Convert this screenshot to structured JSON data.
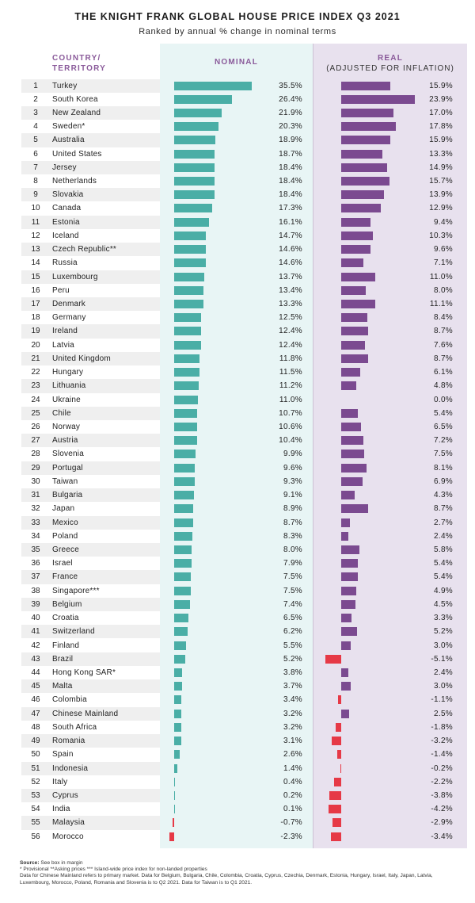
{
  "title": "THE KNIGHT FRANK GLOBAL HOUSE PRICE INDEX Q3 2021",
  "subtitle": "Ranked by annual % change in nominal terms",
  "headers": {
    "country_line1": "COUNTRY/",
    "country_line2": "TERRITORY",
    "nominal": "NOMINAL",
    "real_line1": "REAL",
    "real_line2": "(ADJUSTED FOR INFLATION)"
  },
  "colors": {
    "nominal_bar": "#4aaea6",
    "real_bar": "#7b4a90",
    "negative_bar": "#e63946",
    "nominal_panel": "#e8f5f5",
    "real_panel": "#e8e1ee",
    "header_text": "#8a5a9a"
  },
  "chart_data": {
    "type": "bar",
    "title": "THE KNIGHT FRANK GLOBAL HOUSE PRICE INDEX Q3 2021",
    "subtitle": "Ranked by annual % change in nominal terms",
    "unit": "%",
    "series": [
      {
        "name": "NOMINAL",
        "color": "#4aaea6"
      },
      {
        "name": "REAL",
        "color": "#7b4a90"
      }
    ],
    "rows": [
      {
        "rank": "1",
        "country": "Turkey",
        "nominal": 35.5,
        "real": 15.9
      },
      {
        "rank": "2",
        "country": "South Korea",
        "nominal": 26.4,
        "real": 23.9
      },
      {
        "rank": "3",
        "country": "New Zealand",
        "nominal": 21.9,
        "real": 17.0
      },
      {
        "rank": "4",
        "country": "Sweden*",
        "nominal": 20.3,
        "real": 17.8
      },
      {
        "rank": "5",
        "country": "Australia",
        "nominal": 18.9,
        "real": 15.9
      },
      {
        "rank": "6",
        "country": "United States",
        "nominal": 18.7,
        "real": 13.3
      },
      {
        "rank": "7",
        "country": "Jersey",
        "nominal": 18.4,
        "real": 14.9
      },
      {
        "rank": "8",
        "country": "Netherlands",
        "nominal": 18.4,
        "real": 15.7
      },
      {
        "rank": "9",
        "country": "Slovakia",
        "nominal": 18.4,
        "real": 13.9
      },
      {
        "rank": "10",
        "country": "Canada",
        "nominal": 17.3,
        "real": 12.9
      },
      {
        "rank": "11",
        "country": "Estonia",
        "nominal": 16.1,
        "real": 9.4
      },
      {
        "rank": "12",
        "country": "Iceland",
        "nominal": 14.7,
        "real": 10.3
      },
      {
        "rank": "13",
        "country": "Czech Republic**",
        "nominal": 14.6,
        "real": 9.6
      },
      {
        "rank": "14",
        "country": "Russia",
        "nominal": 14.6,
        "real": 7.1
      },
      {
        "rank": "15",
        "country": "Luxembourg",
        "nominal": 13.7,
        "real": 11.0
      },
      {
        "rank": "16",
        "country": "Peru",
        "nominal": 13.4,
        "real": 8.0
      },
      {
        "rank": "17",
        "country": "Denmark",
        "nominal": 13.3,
        "real": 11.1
      },
      {
        "rank": "18",
        "country": "Germany",
        "nominal": 12.5,
        "real": 8.4
      },
      {
        "rank": "19",
        "country": "Ireland",
        "nominal": 12.4,
        "real": 8.7
      },
      {
        "rank": "20",
        "country": "Latvia",
        "nominal": 12.4,
        "real": 7.6
      },
      {
        "rank": "21",
        "country": "United Kingdom",
        "nominal": 11.8,
        "real": 8.7
      },
      {
        "rank": "22",
        "country": "Hungary",
        "nominal": 11.5,
        "real": 6.1
      },
      {
        "rank": "23",
        "country": "Lithuania",
        "nominal": 11.2,
        "real": 4.8
      },
      {
        "rank": "24",
        "country": "Ukraine",
        "nominal": 11.0,
        "real": 0.0
      },
      {
        "rank": "25",
        "country": "Chile",
        "nominal": 10.7,
        "real": 5.4
      },
      {
        "rank": "26",
        "country": "Norway",
        "nominal": 10.6,
        "real": 6.5
      },
      {
        "rank": "27",
        "country": "Austria",
        "nominal": 10.4,
        "real": 7.2
      },
      {
        "rank": "28",
        "country": "Slovenia",
        "nominal": 9.9,
        "real": 7.5
      },
      {
        "rank": "29",
        "country": "Portugal",
        "nominal": 9.6,
        "real": 8.1
      },
      {
        "rank": "30",
        "country": "Taiwan",
        "nominal": 9.3,
        "real": 6.9
      },
      {
        "rank": "31",
        "country": "Bulgaria",
        "nominal": 9.1,
        "real": 4.3
      },
      {
        "rank": "32",
        "country": "Japan",
        "nominal": 8.9,
        "real": 8.7
      },
      {
        "rank": "33",
        "country": "Mexico",
        "nominal": 8.7,
        "real": 2.7
      },
      {
        "rank": "34",
        "country": "Poland",
        "nominal": 8.3,
        "real": 2.4
      },
      {
        "rank": "35",
        "country": "Greece",
        "nominal": 8.0,
        "real": 5.8
      },
      {
        "rank": "36",
        "country": "Israel",
        "nominal": 7.9,
        "real": 5.4
      },
      {
        "rank": "37",
        "country": "France",
        "nominal": 7.5,
        "real": 5.4
      },
      {
        "rank": "38",
        "country": "Singapore***",
        "nominal": 7.5,
        "real": 4.9
      },
      {
        "rank": "39",
        "country": "Belgium",
        "nominal": 7.4,
        "real": 4.5
      },
      {
        "rank": "40",
        "country": "Croatia",
        "nominal": 6.5,
        "real": 3.3
      },
      {
        "rank": "41",
        "country": "Switzerland",
        "nominal": 6.2,
        "real": 5.2
      },
      {
        "rank": "42",
        "country": "Finland",
        "nominal": 5.5,
        "real": 3.0
      },
      {
        "rank": "43",
        "country": "Brazil",
        "nominal": 5.2,
        "real": -5.1
      },
      {
        "rank": "44",
        "country": "Hong Kong SAR*",
        "nominal": 3.8,
        "real": 2.4
      },
      {
        "rank": "45",
        "country": "Malta",
        "nominal": 3.7,
        "real": 3.0
      },
      {
        "rank": "46",
        "country": "Colombia",
        "nominal": 3.4,
        "real": -1.1
      },
      {
        "rank": "47",
        "country": "Chinese Mainland",
        "nominal": 3.2,
        "real": 2.5
      },
      {
        "rank": "48",
        "country": "South Africa",
        "nominal": 3.2,
        "real": -1.8
      },
      {
        "rank": "49",
        "country": "Romania",
        "nominal": 3.1,
        "real": -3.2
      },
      {
        "rank": "50",
        "country": "Spain",
        "nominal": 2.6,
        "real": -1.4
      },
      {
        "rank": "51",
        "country": "Indonesia",
        "nominal": 1.4,
        "real": -0.2
      },
      {
        "rank": "52",
        "country": "Italy",
        "nominal": 0.4,
        "real": -2.2
      },
      {
        "rank": "53",
        "country": "Cyprus",
        "nominal": 0.2,
        "real": -3.8
      },
      {
        "rank": "54",
        "country": "India",
        "nominal": 0.1,
        "real": -4.2
      },
      {
        "rank": "55",
        "country": "Malaysia",
        "nominal": -0.7,
        "real": -2.9
      },
      {
        "rank": "56",
        "country": "Morocco",
        "nominal": -2.3,
        "real": -3.4
      }
    ]
  },
  "footnotes": {
    "source_label": "Source:",
    "source_text": " See box in margin",
    "line2": "* Provisional **Asking prices *** Island-wide price index for non-landed properties",
    "line3": "Data for Chinese Mainland refers to primary market. Data for Belgium, Bulgaria, Chile, Colombia, Croatia, Cyprus, Czechia, Denmark, Estonia, Hungary, Israel, Italy, Japan, Latvia,",
    "line4": "Luxembourg, Morocco, Poland, Romania and Slovenia is to Q2 2021. Data for Taiwan is to Q1 2021."
  }
}
